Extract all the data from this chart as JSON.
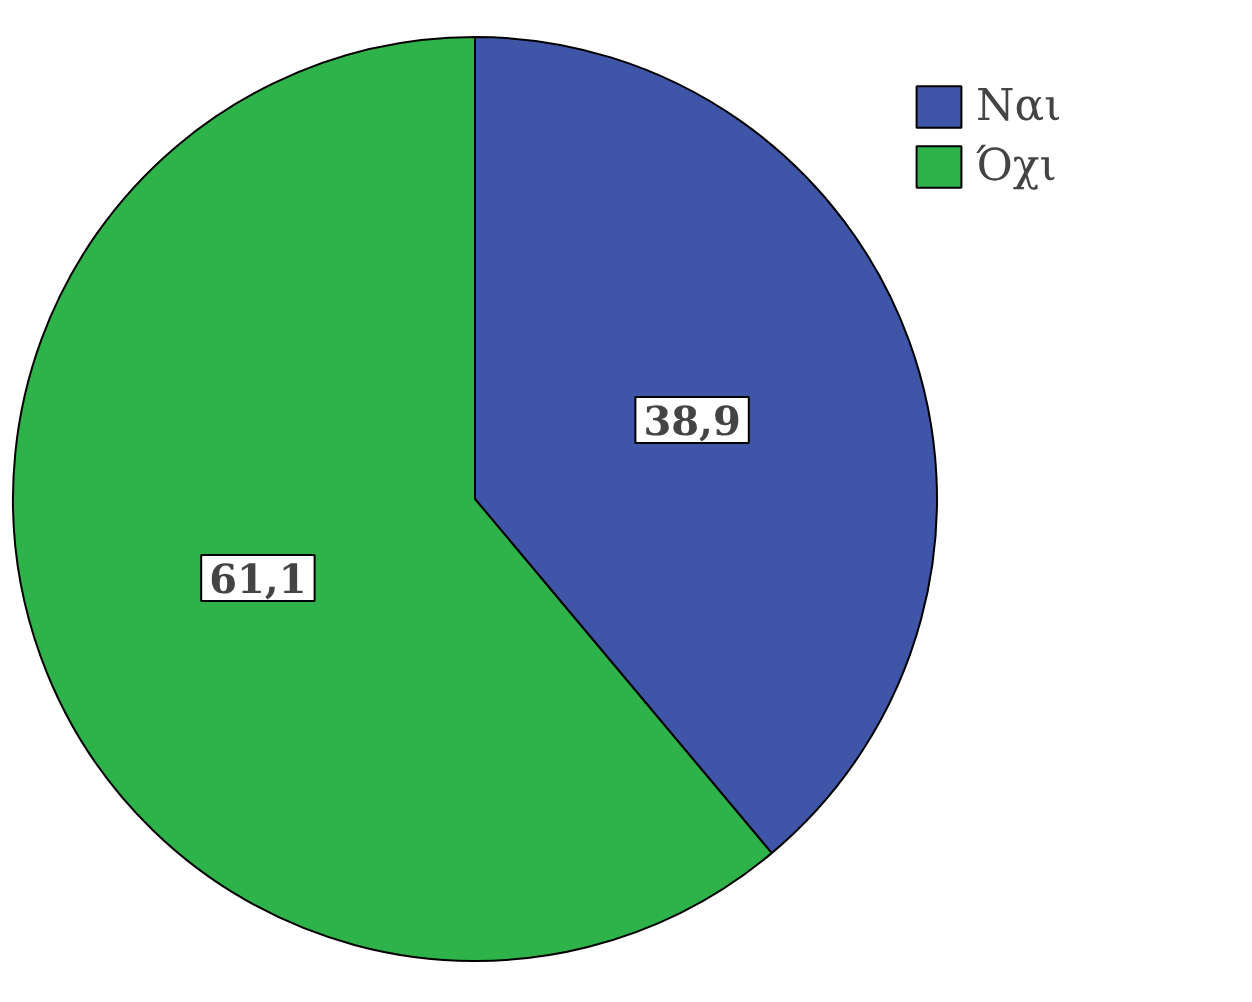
{
  "chart_data": {
    "type": "pie",
    "categories": [
      "Ναι",
      "Όχι"
    ],
    "values": [
      38.9,
      61.1
    ],
    "colors": [
      "#3f56a8",
      "#2db34a"
    ],
    "value_labels": [
      "38,9",
      "61,1"
    ],
    "legend": "top right"
  }
}
